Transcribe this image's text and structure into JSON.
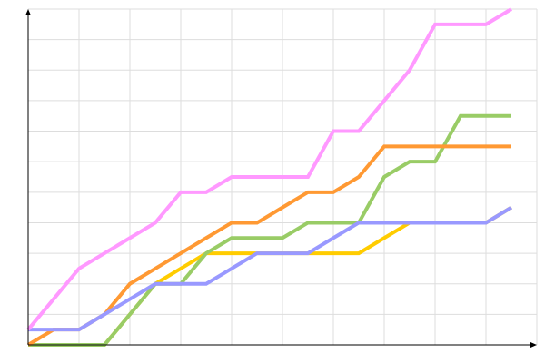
{
  "chart_data": {
    "type": "line",
    "title": "",
    "xlabel": "",
    "ylabel": "",
    "xlim": [
      0,
      20
    ],
    "ylim": [
      0,
      22
    ],
    "grid": true,
    "legend": "none",
    "x": [
      0,
      1,
      2,
      3,
      4,
      5,
      6,
      7,
      8,
      9,
      10,
      11,
      12,
      13,
      14,
      15,
      16,
      17,
      18,
      19
    ],
    "series": [
      {
        "color": "#ff99ff",
        "values": [
          1,
          3,
          5,
          6,
          7,
          8,
          10,
          10,
          11,
          11,
          11,
          11,
          14,
          14,
          16,
          18,
          21,
          21,
          21,
          22
        ]
      },
      {
        "color": "#ff9933",
        "values": [
          0,
          1,
          1,
          2,
          4,
          5,
          6,
          7,
          8,
          8,
          9,
          10,
          10,
          11,
          13,
          13,
          13,
          13,
          13,
          13
        ]
      },
      {
        "color": "#99cc66",
        "values": [
          0,
          0,
          0,
          0,
          2,
          4,
          4,
          6,
          7,
          7,
          7,
          8,
          8,
          8,
          11,
          12,
          12,
          15,
          15,
          15
        ]
      },
      {
        "color": "#ffcc00",
        "values": [
          0,
          0,
          0,
          0,
          2,
          4,
          5,
          6,
          6,
          6,
          6,
          6,
          6,
          6,
          7,
          8,
          8,
          8,
          8,
          9
        ]
      },
      {
        "color": "#9999ff",
        "values": [
          1,
          1,
          1,
          2,
          3,
          4,
          4,
          4,
          5,
          6,
          6,
          6,
          7,
          8,
          8,
          8,
          8,
          8,
          8,
          9
        ]
      }
    ]
  }
}
